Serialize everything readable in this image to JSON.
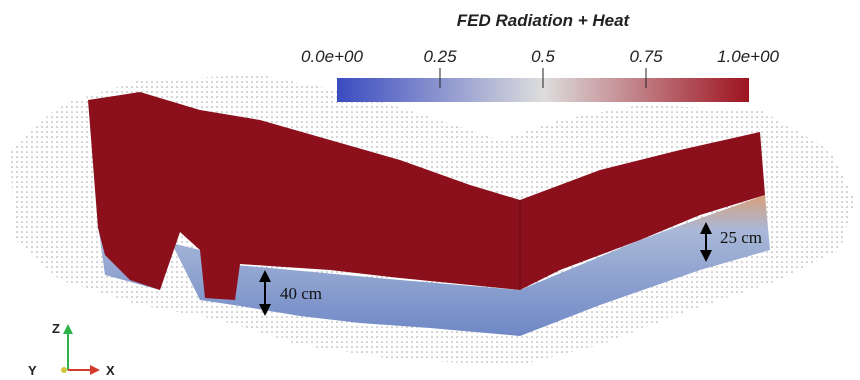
{
  "colorbar": {
    "title": "FED Radiation + Heat",
    "range": [
      0,
      1
    ],
    "ticks": [
      {
        "value": 0,
        "label": "0.0e+00"
      },
      {
        "value": 0.25,
        "label": "0.25"
      },
      {
        "value": 0.5,
        "label": "0.5"
      },
      {
        "value": 0.75,
        "label": "0.75"
      },
      {
        "value": 1,
        "label": "1.0e+00"
      }
    ]
  },
  "annotations": [
    "40 cm",
    "25 cm"
  ],
  "axes": {
    "z": "Z",
    "y": "Y",
    "x": "X"
  }
}
